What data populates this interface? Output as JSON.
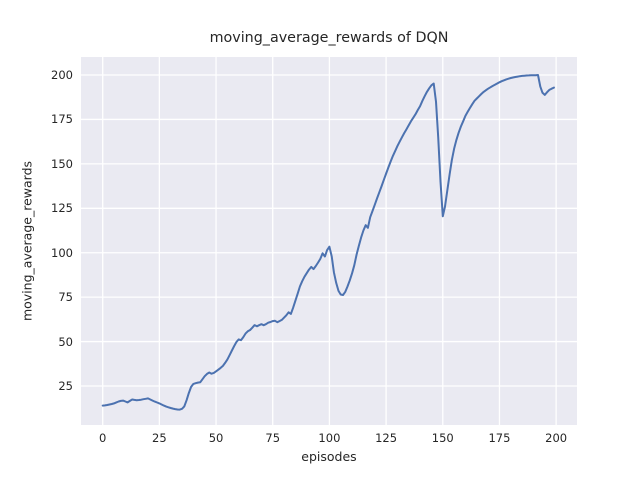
{
  "chart_data": {
    "type": "line",
    "title": "moving_average_rewards of DQN",
    "xlabel": "episodes",
    "ylabel": "moving_average_rewards",
    "x_ticks": [
      0,
      25,
      50,
      75,
      100,
      125,
      150,
      175,
      200
    ],
    "y_ticks": [
      25,
      50,
      75,
      100,
      125,
      150,
      175,
      200
    ],
    "xlim": [
      -9.57,
      209.21
    ],
    "ylim": [
      3.06,
      210.13
    ],
    "grid": true,
    "legend": "none",
    "series": [
      {
        "name": "moving_average_rewards",
        "color": "#4c72b0",
        "x": [
          0,
          1,
          2,
          3,
          4,
          5,
          6,
          7,
          8,
          9,
          10,
          11,
          12,
          13,
          14,
          15,
          16,
          17,
          18,
          19,
          20,
          21,
          22,
          23,
          24,
          25,
          26,
          27,
          28,
          29,
          30,
          31,
          32,
          33,
          34,
          35,
          36,
          37,
          38,
          39,
          40,
          41,
          42,
          43,
          44,
          45,
          46,
          47,
          48,
          49,
          50,
          51,
          52,
          53,
          54,
          55,
          56,
          57,
          58,
          59,
          60,
          61,
          62,
          63,
          64,
          65,
          66,
          67,
          68,
          69,
          70,
          71,
          72,
          73,
          74,
          75,
          76,
          77,
          78,
          79,
          80,
          81,
          82,
          83,
          84,
          85,
          86,
          87,
          88,
          89,
          90,
          91,
          92,
          93,
          94,
          95,
          96,
          97,
          98,
          99,
          100,
          101,
          102,
          103,
          104,
          105,
          106,
          107,
          108,
          109,
          110,
          111,
          112,
          113,
          114,
          115,
          116,
          117,
          118,
          119,
          120,
          121,
          122,
          123,
          124,
          125,
          126,
          127,
          128,
          129,
          130,
          131,
          132,
          133,
          134,
          135,
          136,
          137,
          138,
          139,
          140,
          141,
          142,
          143,
          144,
          145,
          146,
          147,
          148,
          149,
          150,
          151,
          152,
          153,
          154,
          155,
          156,
          157,
          158,
          159,
          160,
          161,
          162,
          163,
          164,
          165,
          166,
          167,
          168,
          169,
          170,
          171,
          172,
          173,
          174,
          175,
          176,
          177,
          178,
          179,
          180,
          181,
          182,
          183,
          184,
          185,
          186,
          187,
          188,
          189,
          190,
          191,
          192,
          193,
          194,
          195,
          196,
          197,
          198,
          199
        ],
        "y": [
          14,
          14.1,
          14.3,
          14.6,
          14.9,
          15.2,
          15.8,
          16.3,
          16.6,
          16.8,
          16.3,
          15.8,
          16.6,
          17.4,
          17.2,
          17,
          17.1,
          17.3,
          17.6,
          17.8,
          18,
          17.4,
          16.8,
          16.2,
          15.7,
          15.2,
          14.6,
          14,
          13.4,
          13,
          12.6,
          12.3,
          12,
          11.8,
          11.7,
          12.2,
          13.5,
          17,
          21,
          24.5,
          26.2,
          26.6,
          26.9,
          27.1,
          28.8,
          30.5,
          31.8,
          32.6,
          31.9,
          32.4,
          33.3,
          34.2,
          35.2,
          36.3,
          38,
          40,
          42.5,
          45,
          47.5,
          49.8,
          51.2,
          50.8,
          52.5,
          54.5,
          55.8,
          56.5,
          57.8,
          59.3,
          58.6,
          59.2,
          59.8,
          59.2,
          59.8,
          60.6,
          61,
          61.5,
          61.7,
          60.9,
          61.5,
          62.2,
          63.5,
          64.8,
          66.5,
          65.6,
          69,
          73,
          77,
          81,
          84,
          86.5,
          88.5,
          90.5,
          92,
          90.8,
          92.5,
          94.5,
          96.5,
          99.7,
          97.9,
          101.5,
          103.4,
          98,
          89,
          83,
          78.5,
          76.5,
          76.2,
          78,
          81,
          84.5,
          88.5,
          93,
          99,
          104,
          108.5,
          112.5,
          115.5,
          114,
          120,
          123.5,
          127,
          130.5,
          134,
          137.5,
          141,
          144.5,
          148,
          151.3,
          154.5,
          157.3,
          160,
          162.5,
          165,
          167.3,
          169.5,
          171.8,
          174,
          176,
          178,
          180.3,
          182.5,
          185.5,
          188,
          190.5,
          192.5,
          194.2,
          195.2,
          185,
          165,
          140,
          120.5,
          126,
          135,
          144,
          152,
          158.5,
          163.5,
          167.5,
          171,
          174,
          177,
          179.3,
          181.5,
          183.5,
          185.5,
          186.8,
          188,
          189.3,
          190.5,
          191.4,
          192.3,
          193.1,
          193.8,
          194.5,
          195.2,
          195.9,
          196.5,
          197,
          197.5,
          197.9,
          198.3,
          198.6,
          198.9,
          199.1,
          199.3,
          199.5,
          199.6,
          199.7,
          199.8,
          199.9,
          199.9,
          199.9,
          200,
          193.5,
          190,
          188.8,
          190.3,
          191.6,
          192.3,
          192.9
        ]
      }
    ]
  },
  "style": {
    "figure_bg": "#ffffff",
    "axes_bg": "#eaeaf2",
    "grid_color": "#ffffff",
    "line_color": "#4c72b0",
    "text_color": "#262626"
  }
}
